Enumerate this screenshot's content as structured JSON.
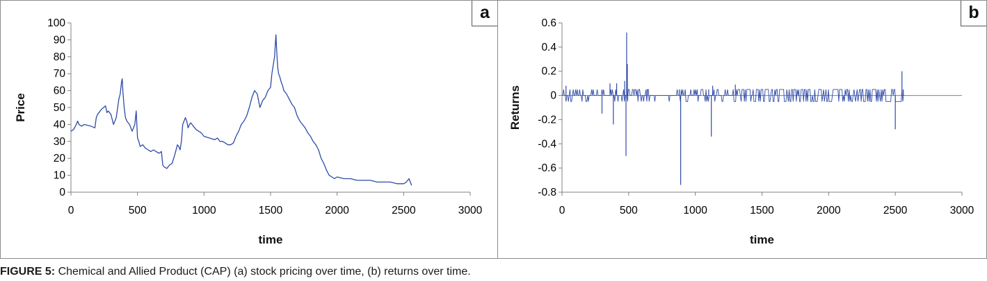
{
  "caption": {
    "label": "FIGURE 5:",
    "text": " Chemical and Allied Product (CAP) (a) stock pricing over time, (b) returns over time."
  },
  "line_color": "#2e4aa8",
  "chart_data": [
    {
      "panel": "a",
      "type": "line",
      "xlabel": "time",
      "ylabel": "Price",
      "xlim": [
        0,
        3000
      ],
      "ylim": [
        0,
        100
      ],
      "xticks": [
        0,
        500,
        1000,
        1500,
        2000,
        2500,
        3000
      ],
      "yticks": [
        0,
        10,
        20,
        30,
        40,
        50,
        60,
        70,
        80,
        90,
        100
      ],
      "series": [
        {
          "x": [
            0,
            20,
            40,
            50,
            60,
            80,
            100,
            150,
            180,
            190,
            200,
            230,
            260,
            270,
            280,
            300,
            320,
            340,
            360,
            370,
            380,
            385,
            390,
            400,
            410,
            420,
            440,
            460,
            480,
            490,
            500,
            510,
            520,
            540,
            560,
            580,
            600,
            620,
            640,
            660,
            680,
            690,
            700,
            720,
            740,
            760,
            780,
            800,
            810,
            820,
            830,
            840,
            860,
            870,
            880,
            890,
            900,
            920,
            940,
            960,
            980,
            1000,
            1040,
            1080,
            1100,
            1120,
            1140,
            1160,
            1180,
            1200,
            1220,
            1240,
            1260,
            1280,
            1300,
            1320,
            1340,
            1360,
            1380,
            1400,
            1420,
            1440,
            1460,
            1480,
            1500,
            1510,
            1520,
            1530,
            1540,
            1545,
            1550,
            1555,
            1560,
            1570,
            1580,
            1590,
            1600,
            1620,
            1640,
            1660,
            1680,
            1700,
            1720,
            1740,
            1760,
            1780,
            1800,
            1820,
            1840,
            1860,
            1880,
            1900,
            1920,
            1940,
            1960,
            1980,
            2000,
            2050,
            2100,
            2150,
            2200,
            2250,
            2300,
            2350,
            2400,
            2450,
            2500,
            2520,
            2540,
            2550,
            2560
          ],
          "values": [
            36,
            37,
            40,
            42,
            40,
            39,
            40,
            39,
            38,
            44,
            46,
            49,
            51,
            47,
            48,
            46,
            40,
            44,
            55,
            58,
            65,
            67,
            60,
            50,
            44,
            42,
            40,
            36,
            40,
            48,
            32,
            30,
            27,
            28,
            26,
            25,
            24,
            25,
            24,
            23,
            24,
            16,
            15,
            14,
            16,
            17,
            22,
            28,
            27,
            25,
            30,
            40,
            44,
            42,
            38,
            40,
            41,
            39,
            37,
            36,
            35,
            33,
            32,
            31,
            32,
            30,
            30,
            29,
            28,
            28,
            29,
            33,
            36,
            40,
            42,
            45,
            50,
            56,
            60,
            58,
            50,
            54,
            56,
            60,
            62,
            70,
            75,
            80,
            93,
            85,
            78,
            73,
            70,
            68,
            65,
            63,
            60,
            58,
            55,
            52,
            50,
            45,
            42,
            40,
            38,
            35,
            33,
            30,
            28,
            25,
            20,
            17,
            13,
            10,
            9,
            8,
            9,
            8,
            8,
            7,
            7,
            7,
            6,
            6,
            6,
            5,
            5,
            6,
            8,
            6,
            4
          ]
        }
      ]
    },
    {
      "panel": "b",
      "type": "line",
      "xlabel": "time",
      "ylabel": "Returns",
      "xlim": [
        0,
        3000
      ],
      "ylim": [
        -0.8,
        0.6
      ],
      "xticks": [
        0,
        500,
        1000,
        1500,
        2000,
        2500,
        3000
      ],
      "yticks": [
        -0.8,
        -0.6,
        -0.4,
        -0.2,
        0,
        0.2,
        0.4,
        0.6
      ],
      "noise_band": {
        "x_range": [
          0,
          2570
        ],
        "dense_range": [
          1280,
          2560
        ],
        "upper": 0.05,
        "lower": -0.05
      },
      "spikes": [
        {
          "x": 30,
          "value": 0.08
        },
        {
          "x": 300,
          "value": -0.15
        },
        {
          "x": 360,
          "value": 0.1
        },
        {
          "x": 385,
          "value": -0.24
        },
        {
          "x": 410,
          "value": 0.1
        },
        {
          "x": 470,
          "value": 0.12
        },
        {
          "x": 480,
          "value": -0.5
        },
        {
          "x": 485,
          "value": 0.52
        },
        {
          "x": 490,
          "value": 0.26
        },
        {
          "x": 640,
          "value": 0.05
        },
        {
          "x": 880,
          "value": 0.05
        },
        {
          "x": 890,
          "value": -0.74
        },
        {
          "x": 1100,
          "value": 0.05
        },
        {
          "x": 1120,
          "value": -0.34
        },
        {
          "x": 1130,
          "value": 0.08
        },
        {
          "x": 1300,
          "value": 0.09
        },
        {
          "x": 2500,
          "value": -0.28
        },
        {
          "x": 2550,
          "value": 0.2
        },
        {
          "x": 2560,
          "value": 0.05
        }
      ]
    }
  ]
}
